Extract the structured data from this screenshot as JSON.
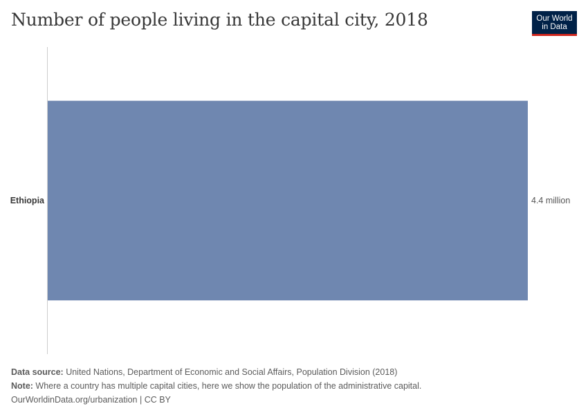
{
  "header": {
    "title": "Number of people living in the capital city, 2018",
    "logo_line1": "Our World",
    "logo_line2": "in Data"
  },
  "colors": {
    "bar": "#6f87b0",
    "axis": "#cccccc",
    "text": "#373737",
    "logo_bg": "#002147",
    "logo_accent": "#ce261e"
  },
  "chart_data": {
    "type": "bar",
    "orientation": "horizontal",
    "categories": [
      "Ethiopia"
    ],
    "values": [
      4.4
    ],
    "value_labels": [
      "4.4 million"
    ],
    "unit": "million",
    "title": "Number of people living in the capital city, 2018",
    "xlabel": "",
    "ylabel": "",
    "xlim": [
      0,
      4.4
    ],
    "grid": false
  },
  "footer": {
    "source_label": "Data source:",
    "source_text": " United Nations, Department of Economic and Social Affairs, Population Division (2018)",
    "note_label": "Note:",
    "note_text": " Where a country has multiple capital cities, here we show the population of the administrative capital.",
    "link_text": "OurWorldinData.org/urbanization | CC BY"
  }
}
